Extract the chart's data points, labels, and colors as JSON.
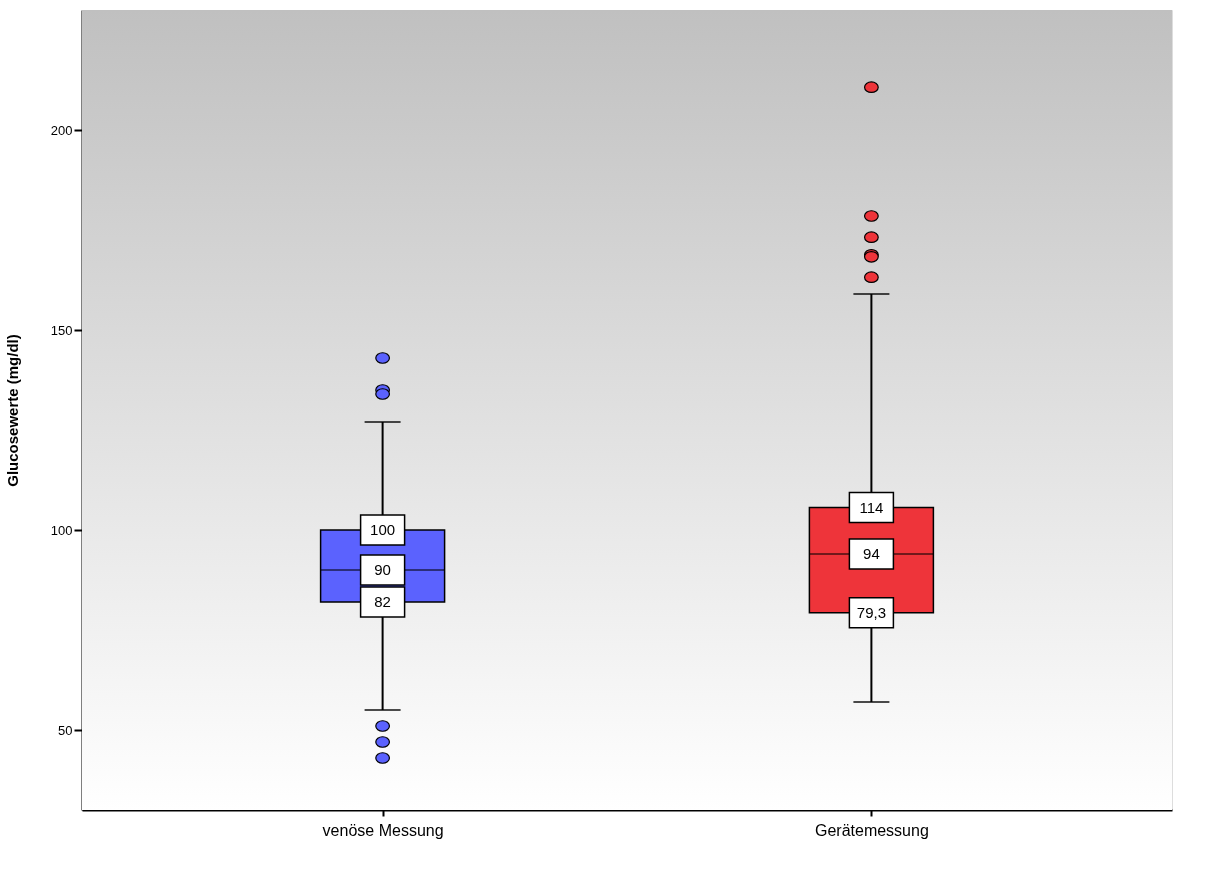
{
  "chart_data": {
    "type": "box",
    "ylabel": "Glucosewerte (mg/dl)",
    "categories": [
      "venöse Messung",
      "Gerätemessung"
    ],
    "colors": [
      "#5b62fe",
      "#ee343a"
    ],
    "boxes": [
      {
        "low": 55,
        "q1": 82,
        "median": 90,
        "q3": 100,
        "high": 127,
        "outliers": [
          143,
          135,
          134,
          51,
          47,
          43
        ]
      },
      {
        "low": 57,
        "q1": 79.3,
        "median": 94,
        "q3": 105.6,
        "high": 159,
        "outliers": [
          210.7,
          178.5,
          173.2,
          168.8,
          168.3,
          163.2
        ]
      }
    ],
    "annotations": [
      {
        "text": "100",
        "x": "venöse Messung",
        "y": 100
      },
      {
        "text": "90",
        "x": "venöse Messung",
        "y": 90
      },
      {
        "text": "82",
        "x": "venöse Messung",
        "y": 82
      },
      {
        "text": "114",
        "x": "Gerätemessung",
        "y": 105.6
      },
      {
        "text": "94",
        "x": "Gerätemessung",
        "y": 94
      },
      {
        "text": "79,3",
        "x": "Gerätemessung",
        "y": 79.3
      }
    ],
    "ylim": [
      30,
      230
    ],
    "yticks": [
      50,
      100,
      150,
      200
    ]
  }
}
